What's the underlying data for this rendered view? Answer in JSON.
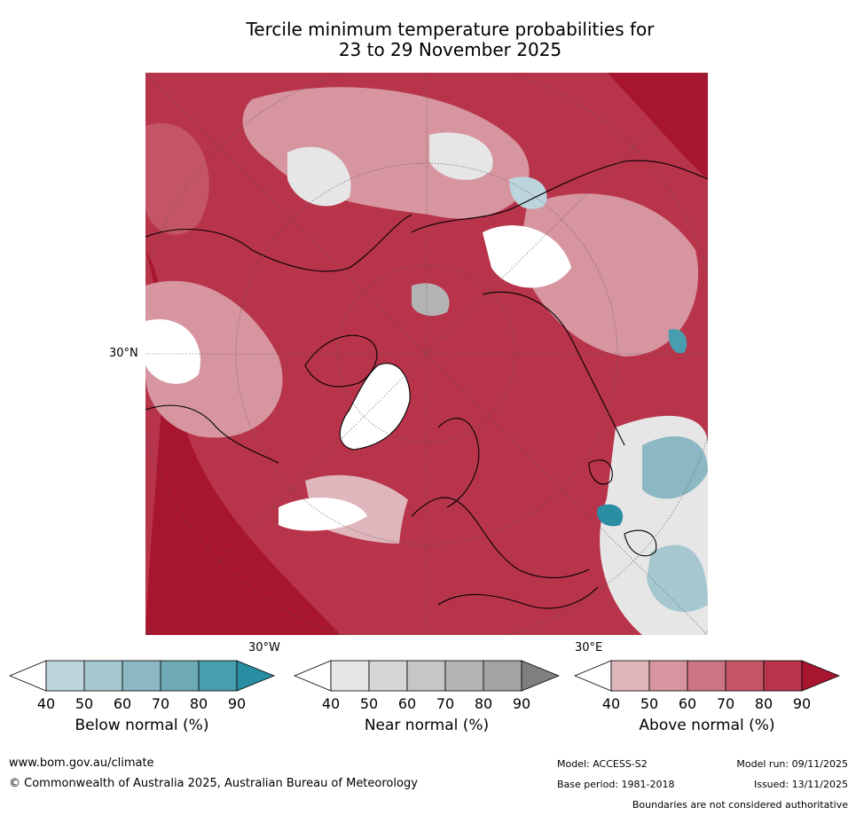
{
  "title": {
    "line1": "Tercile minimum temperature probabilities for",
    "line2": "23 to 29 November 2025"
  },
  "map": {
    "labels": {
      "lat30n": "30°N",
      "lon30w": "30°W",
      "lon30e": "30°E"
    },
    "colors": {
      "above": [
        "#e0b6bd",
        "#d6959f",
        "#cc7582",
        "#c45566",
        "#b8344b",
        "#a8152e"
      ],
      "below": [
        "#bcd5dc",
        "#a6c7cf",
        "#8cb8c3",
        "#6eaab6",
        "#489eae",
        "#2a8ea3"
      ],
      "near": [
        "#e6e6e6",
        "#d6d6d6",
        "#c6c6c6",
        "#b4b4b4",
        "#a3a3a3",
        "#7f7f7f"
      ]
    }
  },
  "colorbars": [
    {
      "name": "below",
      "label": "Below normal (%)",
      "ticks": [
        "40",
        "50",
        "60",
        "70",
        "80",
        "90"
      ],
      "colors": [
        "#bcd5dc",
        "#a6c7cf",
        "#8cb8c3",
        "#6eaab6",
        "#489eae",
        "#2a8ea3"
      ]
    },
    {
      "name": "near",
      "label": "Near normal (%)",
      "ticks": [
        "40",
        "50",
        "60",
        "70",
        "80",
        "90"
      ],
      "colors": [
        "#e6e6e6",
        "#d6d6d6",
        "#c6c6c6",
        "#b4b4b4",
        "#a3a3a3",
        "#7f7f7f"
      ]
    },
    {
      "name": "above",
      "label": "Above normal (%)",
      "ticks": [
        "40",
        "50",
        "60",
        "70",
        "80",
        "90"
      ],
      "colors": [
        "#e0b6bd",
        "#d6959f",
        "#cc7582",
        "#c45566",
        "#b8344b",
        "#a8152e"
      ]
    }
  ],
  "footer": {
    "url": "www.bom.gov.au/climate",
    "copyright": "© Commonwealth of Australia 2025, Australian Bureau of Meteorology",
    "model": "Model: ACCESS-S2",
    "base_period": "Base period: 1981-2018",
    "model_run": "Model run: 09/11/2025",
    "issued": "Issued: 13/11/2025",
    "disclaimer": "Boundaries are not considered authoritative"
  }
}
